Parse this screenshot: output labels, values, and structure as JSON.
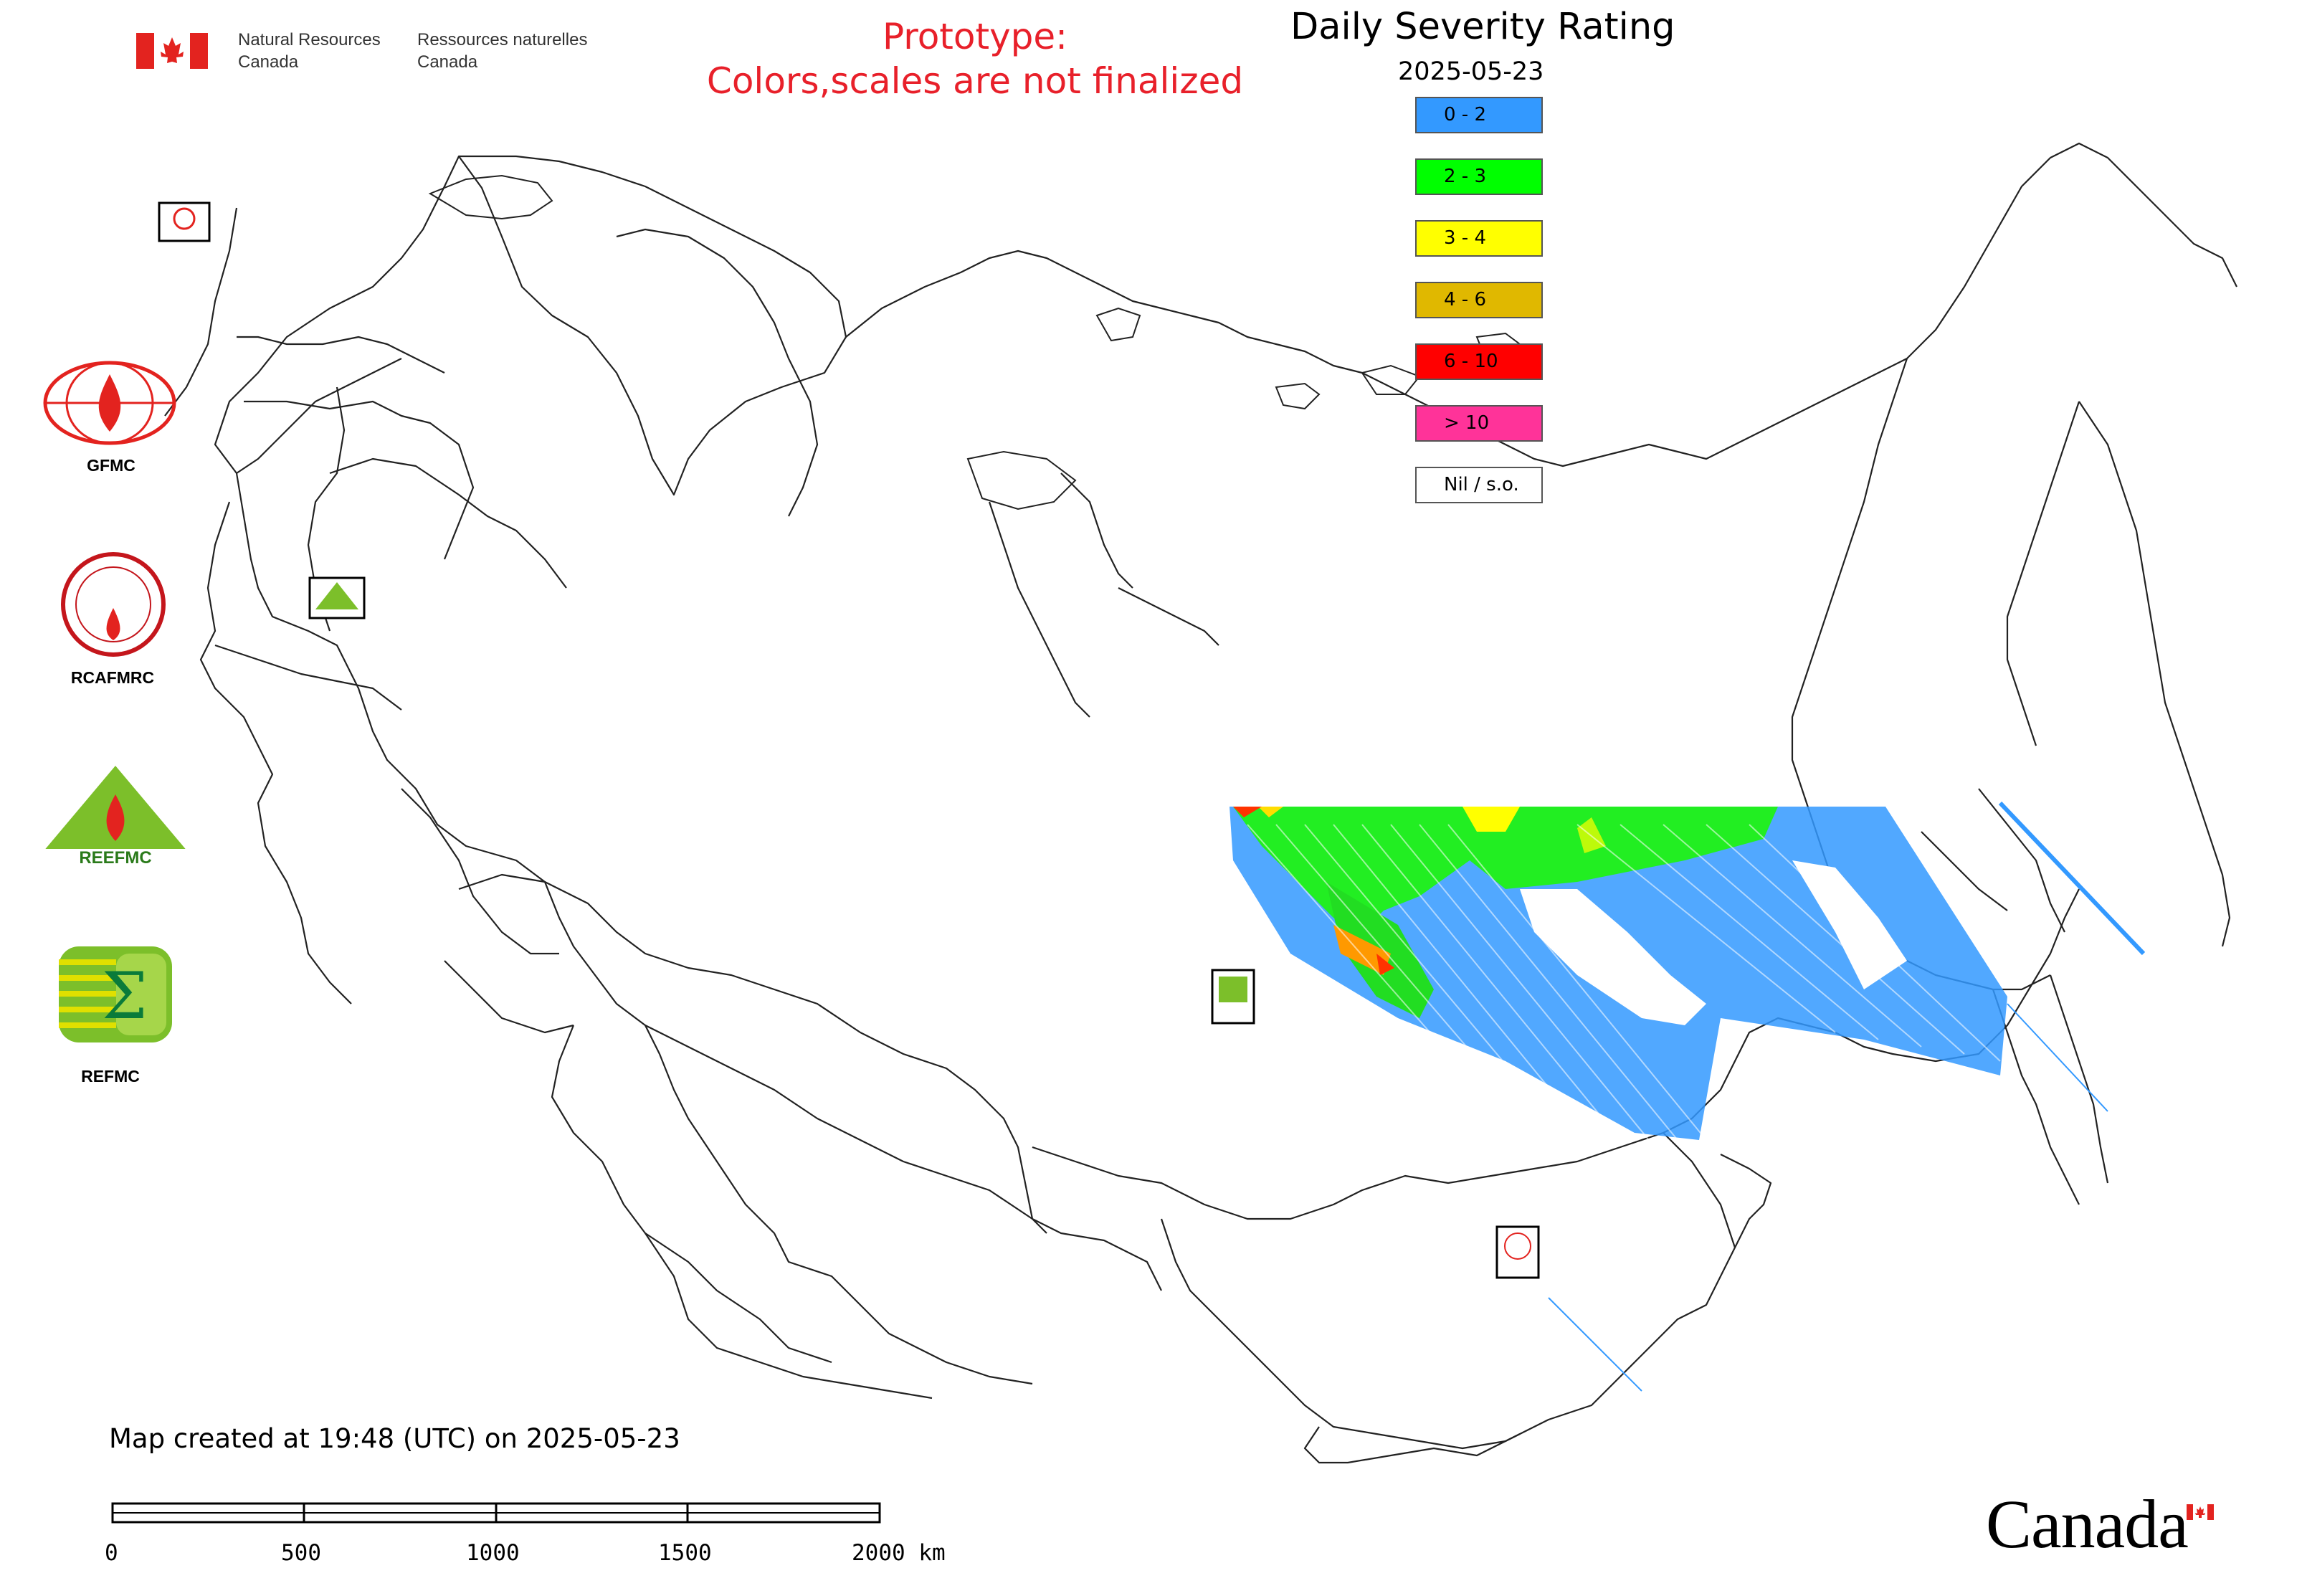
{
  "header": {
    "department_en_line1": "Natural Resources",
    "department_en_line2": "Canada",
    "department_fr_line1": "Ressources naturelles",
    "department_fr_line2": "Canada",
    "prototype_line1": "Prototype:",
    "prototype_line2": "Colors,scales are not finalized"
  },
  "legend": {
    "title": "Daily Severity Rating",
    "date": "2025-05-23",
    "items": [
      {
        "label": "0 - 2",
        "color": "#3399ff"
      },
      {
        "label": "2 - 3",
        "color": "#00ff00"
      },
      {
        "label": "3 - 4",
        "color": "#ffff00"
      },
      {
        "label": "4 - 6",
        "color": "#e0b800"
      },
      {
        "label": "6 - 10",
        "color": "#ff0000"
      },
      {
        "label": "> 10",
        "color": "#ff3399"
      },
      {
        "label": "Nil / s.o.",
        "color": "#ffffff"
      }
    ]
  },
  "agencies": [
    {
      "label": "GFMC",
      "icon": "gfmc-logo-icon"
    },
    {
      "label": "RCAFMRC",
      "icon": "rcafmrc-logo-icon"
    },
    {
      "label": "REEFMC",
      "icon": "reefmc-logo-icon"
    },
    {
      "label": "REFMC",
      "icon": "refmc-logo-icon"
    }
  ],
  "footer": {
    "created_text": "Map created at 19:48 (UTC) on 2025-05-23",
    "scale_ticks": [
      "0",
      "500",
      "1000",
      "1500",
      "2000 km"
    ],
    "wordmark": "Canada"
  }
}
